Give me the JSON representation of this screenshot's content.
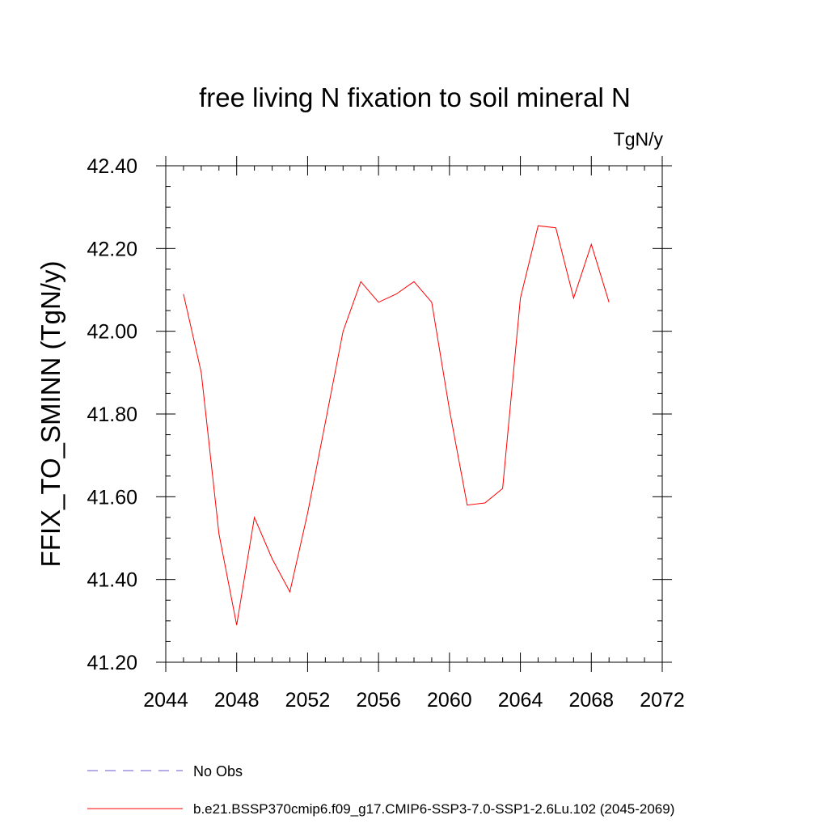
{
  "chart_data": {
    "type": "line",
    "title": "free living N fixation to soil mineral N",
    "units": "TgN/y",
    "ylabel": "FFIX_TO_SMINN  (TgN/y)",
    "xlabel": "",
    "xlim": [
      2044,
      2072
    ],
    "ylim": [
      41.2,
      42.4
    ],
    "x_ticks": [
      2044,
      2048,
      2052,
      2056,
      2060,
      2064,
      2068,
      2072
    ],
    "x_tick_labels": [
      "2044",
      "2048",
      "2052",
      "2056",
      "2060",
      "2064",
      "2068",
      "2072"
    ],
    "y_ticks": [
      41.2,
      41.4,
      41.6,
      41.8,
      42.0,
      42.2,
      42.4
    ],
    "y_tick_labels": [
      "41.20",
      "41.40",
      "41.60",
      "41.80",
      "42.00",
      "42.20",
      "42.40"
    ],
    "grid": false,
    "series": [
      {
        "name": "b.e21.BSSP370cmip6.f09_g17.CMIP6-SSP3-7.0-SSP1-2.6Lu.102 (2045-2069)",
        "color": "#ff0000",
        "x": [
          2045,
          2046,
          2047,
          2048,
          2049,
          2050,
          2051,
          2052,
          2053,
          2054,
          2055,
          2056,
          2057,
          2058,
          2059,
          2060,
          2061,
          2062,
          2063,
          2064,
          2065,
          2066,
          2067,
          2068,
          2069
        ],
        "values": [
          42.09,
          41.9,
          41.51,
          41.29,
          41.55,
          41.45,
          41.37,
          41.56,
          41.78,
          42.0,
          42.12,
          42.07,
          42.09,
          42.12,
          42.07,
          41.81,
          41.58,
          41.585,
          41.62,
          42.08,
          42.255,
          42.25,
          42.08,
          42.21,
          42.07
        ]
      }
    ],
    "legend": [
      {
        "label": "No Obs",
        "color": "#6a5acd",
        "style": "dashed"
      },
      {
        "label": "b.e21.BSSP370cmip6.f09_g17.CMIP6-SSP3-7.0-SSP1-2.6Lu.102 (2045-2069)",
        "color": "#ff0000",
        "style": "solid"
      }
    ],
    "legend_position": "bottom"
  }
}
